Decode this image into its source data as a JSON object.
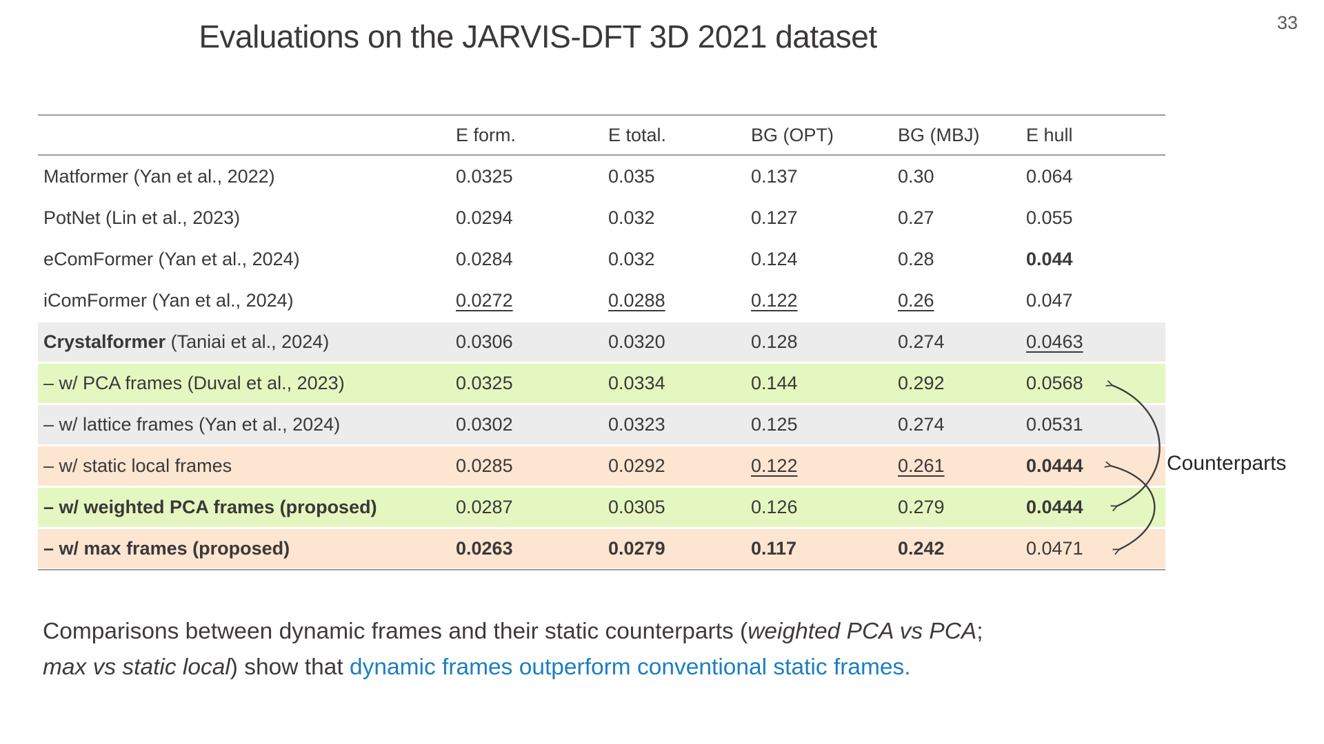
{
  "page_number": "33",
  "title": "Evaluations on the JARVIS-DFT 3D 2021 dataset",
  "table": {
    "headers": [
      "",
      "E form.",
      "E total.",
      "BG (OPT)",
      "BG (MBJ)",
      "E hull"
    ],
    "rows": [
      {
        "bg": "white",
        "label": [
          {
            "t": "Matformer (Yan et al., 2022)",
            "b": false
          }
        ],
        "cells": [
          {
            "t": "0.0325"
          },
          {
            "t": "0.035"
          },
          {
            "t": "0.137"
          },
          {
            "t": "0.30"
          },
          {
            "t": "0.064"
          }
        ]
      },
      {
        "bg": "white",
        "label": [
          {
            "t": "PotNet (Lin et al., 2023)",
            "b": false
          }
        ],
        "cells": [
          {
            "t": "0.0294"
          },
          {
            "t": "0.032"
          },
          {
            "t": "0.127"
          },
          {
            "t": "0.27"
          },
          {
            "t": "0.055"
          }
        ]
      },
      {
        "bg": "white",
        "label": [
          {
            "t": "eComFormer (Yan et al., 2024)",
            "b": false
          }
        ],
        "cells": [
          {
            "t": "0.0284"
          },
          {
            "t": "0.032"
          },
          {
            "t": "0.124"
          },
          {
            "t": "0.28"
          },
          {
            "t": "0.044",
            "b": true
          }
        ]
      },
      {
        "bg": "white",
        "label": [
          {
            "t": "iComFormer (Yan et al., 2024)",
            "b": false
          }
        ],
        "cells": [
          {
            "t": "0.0272",
            "u": true
          },
          {
            "t": "0.0288",
            "u": true
          },
          {
            "t": "0.122",
            "u": true
          },
          {
            "t": "0.26",
            "u": true
          },
          {
            "t": "0.047"
          }
        ]
      },
      {
        "bg": "gray",
        "label": [
          {
            "t": "Crystalformer",
            "b": true
          },
          {
            "t": " (Taniai et al., 2024)",
            "b": false
          }
        ],
        "cells": [
          {
            "t": "0.0306"
          },
          {
            "t": "0.0320"
          },
          {
            "t": "0.128"
          },
          {
            "t": "0.274"
          },
          {
            "t": "0.0463",
            "u": true
          }
        ]
      },
      {
        "bg": "green",
        "label": [
          {
            "t": "– w/ PCA frames (Duval et al., 2023)",
            "b": false
          }
        ],
        "cells": [
          {
            "t": "0.0325"
          },
          {
            "t": "0.0334"
          },
          {
            "t": "0.144"
          },
          {
            "t": "0.292"
          },
          {
            "t": "0.0568"
          }
        ]
      },
      {
        "bg": "gray",
        "label": [
          {
            "t": "– w/ lattice frames (Yan et al., 2024)",
            "b": false
          }
        ],
        "cells": [
          {
            "t": "0.0302"
          },
          {
            "t": "0.0323"
          },
          {
            "t": "0.125"
          },
          {
            "t": "0.274"
          },
          {
            "t": "0.0531"
          }
        ]
      },
      {
        "bg": "orange",
        "label": [
          {
            "t": "– w/ static local frames",
            "b": false
          }
        ],
        "cells": [
          {
            "t": "0.0285"
          },
          {
            "t": "0.0292"
          },
          {
            "t": "0.122",
            "u": true
          },
          {
            "t": "0.261",
            "u": true
          },
          {
            "t": "0.0444",
            "b": true
          }
        ]
      },
      {
        "bg": "green",
        "label": [
          {
            "t": "– w/ weighted PCA frames (proposed)",
            "b": true
          }
        ],
        "cells": [
          {
            "t": "0.0287"
          },
          {
            "t": "0.0305"
          },
          {
            "t": "0.126"
          },
          {
            "t": "0.279"
          },
          {
            "t": "0.0444",
            "b": true
          }
        ]
      },
      {
        "bg": "orange",
        "label": [
          {
            "t": "– w/ max frames (proposed)",
            "b": true
          }
        ],
        "cells": [
          {
            "t": "0.0263",
            "b": true
          },
          {
            "t": "0.0279",
            "b": true
          },
          {
            "t": "0.117",
            "b": true
          },
          {
            "t": "0.242",
            "b": true
          },
          {
            "t": "0.0471"
          }
        ]
      }
    ]
  },
  "annotation": {
    "label": "Counterparts"
  },
  "caption": {
    "lines": [
      [
        {
          "t": "Comparisons between dynamic frames and their static counterparts (",
          "s": "normal"
        },
        {
          "t": "weighted PCA vs PCA",
          "s": "italic"
        },
        {
          "t": ";",
          "s": "normal"
        }
      ],
      [
        {
          "t": "max vs static local",
          "s": "italic"
        },
        {
          "t": ") show that ",
          "s": "normal"
        },
        {
          "t": "dynamic frames outperform conventional static frames.",
          "s": "blue"
        }
      ]
    ]
  },
  "colors": {
    "text": "#3b3838",
    "rule_line": "#9c9c9c",
    "blue_text": "#1b7ec3",
    "row_gray": "#ececec",
    "row_green": "#e4f7c0",
    "row_orange": "#fce5d1",
    "page_number": "#595959"
  }
}
